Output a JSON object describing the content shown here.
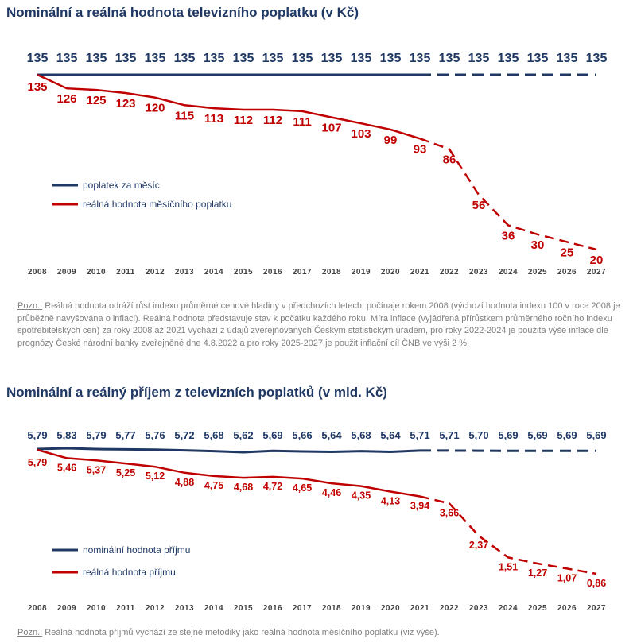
{
  "chart_data": [
    {
      "type": "line",
      "title": "Nominální a reálná hodnota televizního poplatku (v Kč)",
      "categories": [
        "2008",
        "2009",
        "2010",
        "2011",
        "2012",
        "2013",
        "2014",
        "2015",
        "2016",
        "2017",
        "2018",
        "2019",
        "2020",
        "2021",
        "2022",
        "2023",
        "2024",
        "2025",
        "2026",
        "2027"
      ],
      "series": [
        {
          "name": "poplatek za měsíc",
          "color": "#1f3864",
          "values": [
            135,
            135,
            135,
            135,
            135,
            135,
            135,
            135,
            135,
            135,
            135,
            135,
            135,
            135,
            135,
            135,
            135,
            135,
            135,
            135
          ],
          "labels": [
            "135",
            "135",
            "135",
            "135",
            "135",
            "135",
            "135",
            "135",
            "135",
            "135",
            "135",
            "135",
            "135",
            "135",
            "135",
            "135",
            "135",
            "135",
            "135",
            "135"
          ]
        },
        {
          "name": "reálná hodnota měsíčního poplatku",
          "color": "#c00000",
          "values": [
            135,
            126,
            125,
            123,
            120,
            115,
            113,
            112,
            112,
            111,
            107,
            103,
            99,
            93,
            86,
            56,
            36,
            30,
            25,
            20
          ],
          "labels": [
            "135",
            "126",
            "125",
            "123",
            "120",
            "115",
            "113",
            "112",
            "112",
            "111",
            "107",
            "103",
            "99",
            "93",
            "86",
            "56",
            "36",
            "30",
            "25",
            "20"
          ]
        }
      ],
      "dashed_from": "2021",
      "note_prefix": "Pozn.:",
      "note": "Reálná hodnota odráží růst indexu průměrné cenové hladiny v předchozích letech, počínaje rokem 2008 (výchozí hodnota indexu 100 v roce 2008 je průběžně navyšována o inflaci). Reálná hodnota představuje stav k počátku každého roku. Míra inflace (vyjádřená přírůstkem průměrného ročního indexu spotřebitelských cen) za roky 2008 až 2021 vychází z údajů zveřejňovaných Českým statistickým úřadem, pro roky 2022-2024 je použita výše inflace dle prognózy České národní banky zveřejněné dne 4.8.2022 a pro roky 2025-2027 je použit inflační cíl ČNB ve výši 2 %."
    },
    {
      "type": "line",
      "title": "Nominální a reálný příjem z televizních poplatků (v mld. Kč)",
      "categories": [
        "2008",
        "2009",
        "2010",
        "2011",
        "2012",
        "2013",
        "2014",
        "2015",
        "2016",
        "2017",
        "2018",
        "2019",
        "2020",
        "2021",
        "2022",
        "2023",
        "2024",
        "2025",
        "2026",
        "2027"
      ],
      "series": [
        {
          "name": "nominální hodnota příjmu",
          "color": "#1f3864",
          "values": [
            5.79,
            5.83,
            5.79,
            5.77,
            5.76,
            5.72,
            5.68,
            5.62,
            5.69,
            5.66,
            5.64,
            5.68,
            5.64,
            5.71,
            5.71,
            5.7,
            5.69,
            5.69,
            5.69,
            5.69
          ],
          "labels": [
            "5,79",
            "5,83",
            "5,79",
            "5,77",
            "5,76",
            "5,72",
            "5,68",
            "5,62",
            "5,69",
            "5,66",
            "5,64",
            "5,68",
            "5,64",
            "5,71",
            "5,71",
            "5,70",
            "5,69",
            "5,69",
            "5,69",
            "5,69"
          ]
        },
        {
          "name": "reálná hodnota příjmu",
          "color": "#c00000",
          "values": [
            5.79,
            5.46,
            5.37,
            5.25,
            5.12,
            4.88,
            4.75,
            4.68,
            4.72,
            4.65,
            4.46,
            4.35,
            4.13,
            3.94,
            3.66,
            2.37,
            1.51,
            1.27,
            1.07,
            0.86
          ],
          "labels": [
            "5,79",
            "5,46",
            "5,37",
            "5,25",
            "5,12",
            "4,88",
            "4,75",
            "4,68",
            "4,72",
            "4,65",
            "4,46",
            "4,35",
            "4,13",
            "3,94",
            "3,66",
            "2,37",
            "1,51",
            "1,27",
            "1,07",
            "0,86"
          ]
        }
      ],
      "dashed_from": "2021",
      "note_prefix": "Pozn.:",
      "note": "Reálná hodnota příjmů vychází ze stejné metodiky jako reálná hodnota měsíčního poplatku (viz výše)."
    }
  ]
}
